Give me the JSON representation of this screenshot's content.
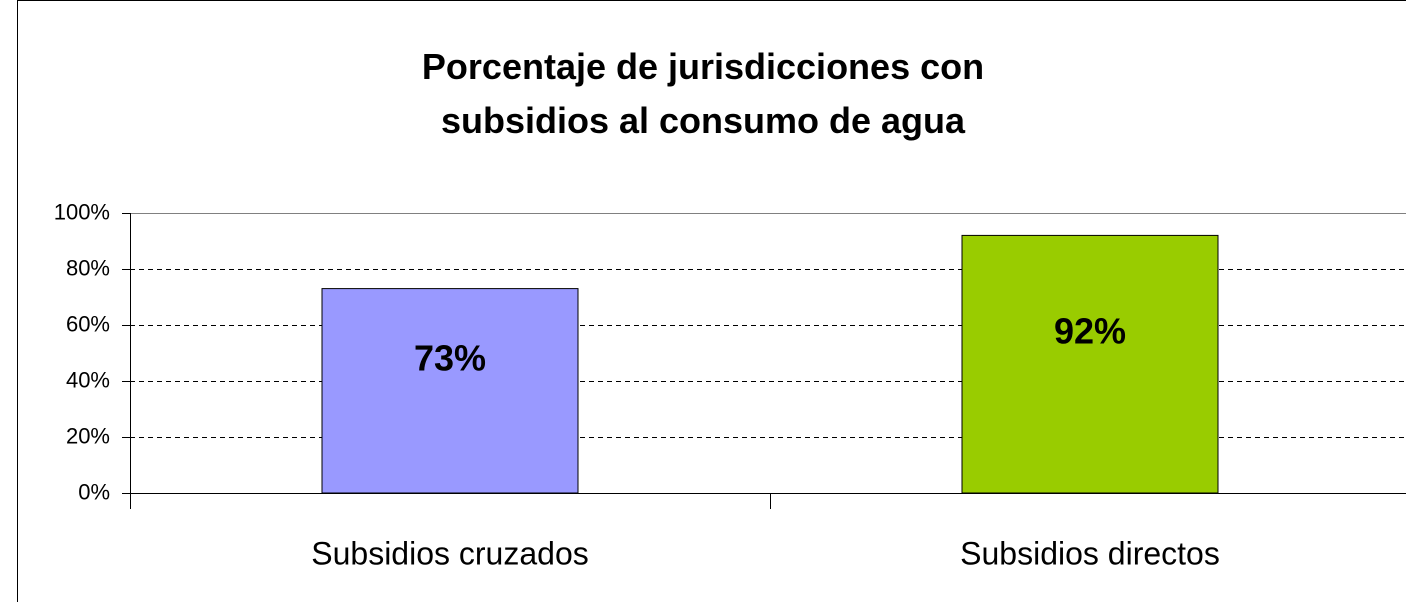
{
  "chart_data": {
    "type": "bar",
    "title": "Porcentaje de jurisdicciones con subsidios al consumo de agua",
    "categories": [
      "Subsidios cruzados",
      "Subsidios directos"
    ],
    "values": [
      73,
      92
    ],
    "value_labels": [
      "73%",
      "92%"
    ],
    "colors": [
      "#9999ff",
      "#99cc00"
    ],
    "ylim": [
      0,
      100
    ],
    "yticks": [
      {
        "value": 0,
        "label": "0%"
      },
      {
        "value": 20,
        "label": "20%"
      },
      {
        "value": 40,
        "label": "40%"
      },
      {
        "value": 60,
        "label": "60%"
      },
      {
        "value": 80,
        "label": "80%"
      },
      {
        "value": 100,
        "label": "100%"
      }
    ],
    "grid": true
  }
}
